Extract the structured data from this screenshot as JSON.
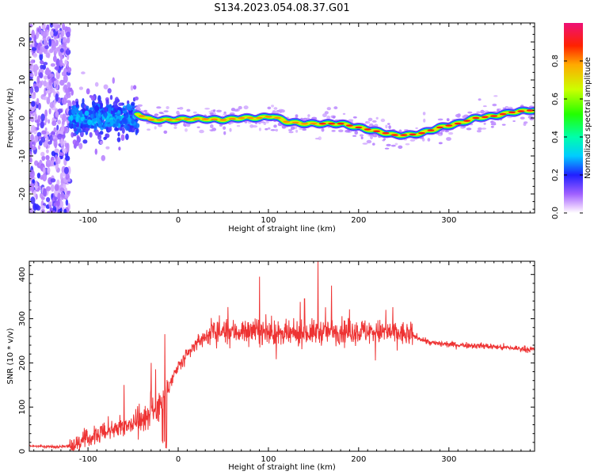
{
  "title": "S134.2023.054.08.37.G01",
  "chart_data": [
    {
      "type": "heatmap",
      "xlabel": "Height of straight line (km)",
      "ylabel": "Frequency (Hz)",
      "xlim": [
        -165,
        395
      ],
      "ylim": [
        -25,
        25
      ],
      "x_ticks": [
        -100,
        0,
        100,
        200,
        300
      ],
      "y_ticks": [
        -20,
        -10,
        0,
        10,
        20
      ],
      "colorbar": {
        "label": "Normalized spectral amplitude",
        "range": [
          0,
          1
        ],
        "ticks": [
          "0.0",
          "0.2",
          "0.4",
          "0.6",
          "0.8"
        ]
      },
      "ridge_frequency_track": {
        "x": [
          -45,
          -30,
          -10,
          10,
          30,
          50,
          70,
          90,
          105,
          120,
          140,
          160,
          180,
          200,
          220,
          240,
          255,
          270,
          290,
          310,
          330,
          350,
          370,
          390
        ],
        "y": [
          1,
          -0.5,
          -0.5,
          -0.3,
          -0.3,
          -0.5,
          0,
          0,
          0.5,
          -1,
          -1.5,
          -1.5,
          -1.5,
          -2.5,
          -3.5,
          -4.5,
          -4.5,
          -4,
          -2.5,
          -1.5,
          0,
          0.5,
          1.5,
          2
        ]
      }
    },
    {
      "type": "line",
      "xlabel": "Height of straight line (km)",
      "ylabel": "SNR (10 * v/v)",
      "xlim": [
        -165,
        395
      ],
      "ylim": [
        0,
        430
      ],
      "x_ticks": [
        -100,
        0,
        100,
        200,
        300
      ],
      "y_ticks": [
        0,
        100,
        200,
        300,
        400
      ],
      "color": "#ee3333",
      "series": [
        {
          "x": [
            -165,
            -140,
            -120,
            -100,
            -80,
            -60,
            -40,
            -25,
            -18,
            -12,
            0,
            10,
            20,
            30,
            40,
            60,
            80,
            100,
            120,
            140,
            160,
            180,
            200,
            220,
            240,
            260,
            280,
            300,
            320,
            340,
            360,
            380,
            395
          ],
          "y": [
            12,
            10,
            12,
            28,
            45,
            58,
            75,
            95,
            120,
            140,
            190,
            215,
            245,
            260,
            270,
            270,
            272,
            268,
            262,
            268,
            270,
            272,
            272,
            270,
            268,
            262,
            245,
            242,
            240,
            238,
            235,
            232,
            230
          ]
        }
      ],
      "peaks": {
        "x": [
          -60,
          -30,
          -15,
          90,
          140,
          155,
          170,
          230
        ],
        "y": [
          150,
          200,
          265,
          395,
          345,
          430,
          375,
          320
        ]
      }
    }
  ]
}
